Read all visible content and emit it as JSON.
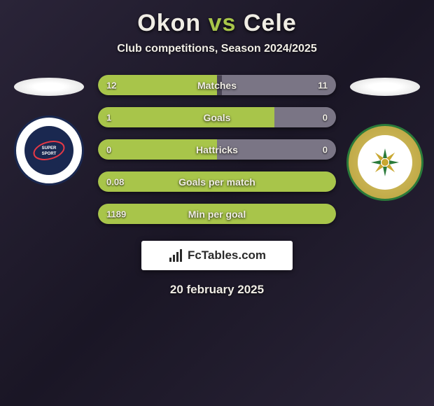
{
  "title": {
    "player1": "Okon",
    "vs": "vs",
    "player2": "Cele",
    "player1_color": "#f0ede5",
    "vs_color": "#a8c54a",
    "player2_color": "#f0ede5"
  },
  "subtitle": "Club competitions, Season 2024/2025",
  "brand": "FcTables.com",
  "date": "20 february 2025",
  "bar_style": {
    "track_bg": "#4a4555",
    "left_fill": "#a8c54a",
    "right_fill": "#7a7585",
    "height": 29,
    "radius": 15
  },
  "stats": [
    {
      "label": "Matches",
      "left_val": "12",
      "right_val": "11",
      "left_pct": 50,
      "right_pct": 48
    },
    {
      "label": "Goals",
      "left_val": "1",
      "right_val": "0",
      "left_pct": 74,
      "right_pct": 26
    },
    {
      "label": "Hattricks",
      "left_val": "0",
      "right_val": "0",
      "left_pct": 50,
      "right_pct": 50
    },
    {
      "label": "Goals per match",
      "left_val": "0.08",
      "right_val": "",
      "left_pct": 100,
      "right_pct": 0
    },
    {
      "label": "Min per goal",
      "left_val": "1189",
      "right_val": "",
      "left_pct": 100,
      "right_pct": 0
    }
  ],
  "clubs": {
    "left": {
      "name": "SUPERSPORT UNITED FC",
      "badge_primary": "#1a2850",
      "badge_secondary": "#ffffff"
    },
    "right": {
      "name": "LAMONTVILLE GOLDEN ARROWS",
      "badge_primary": "#2a7a3a",
      "badge_secondary": "#d8c66a"
    }
  }
}
